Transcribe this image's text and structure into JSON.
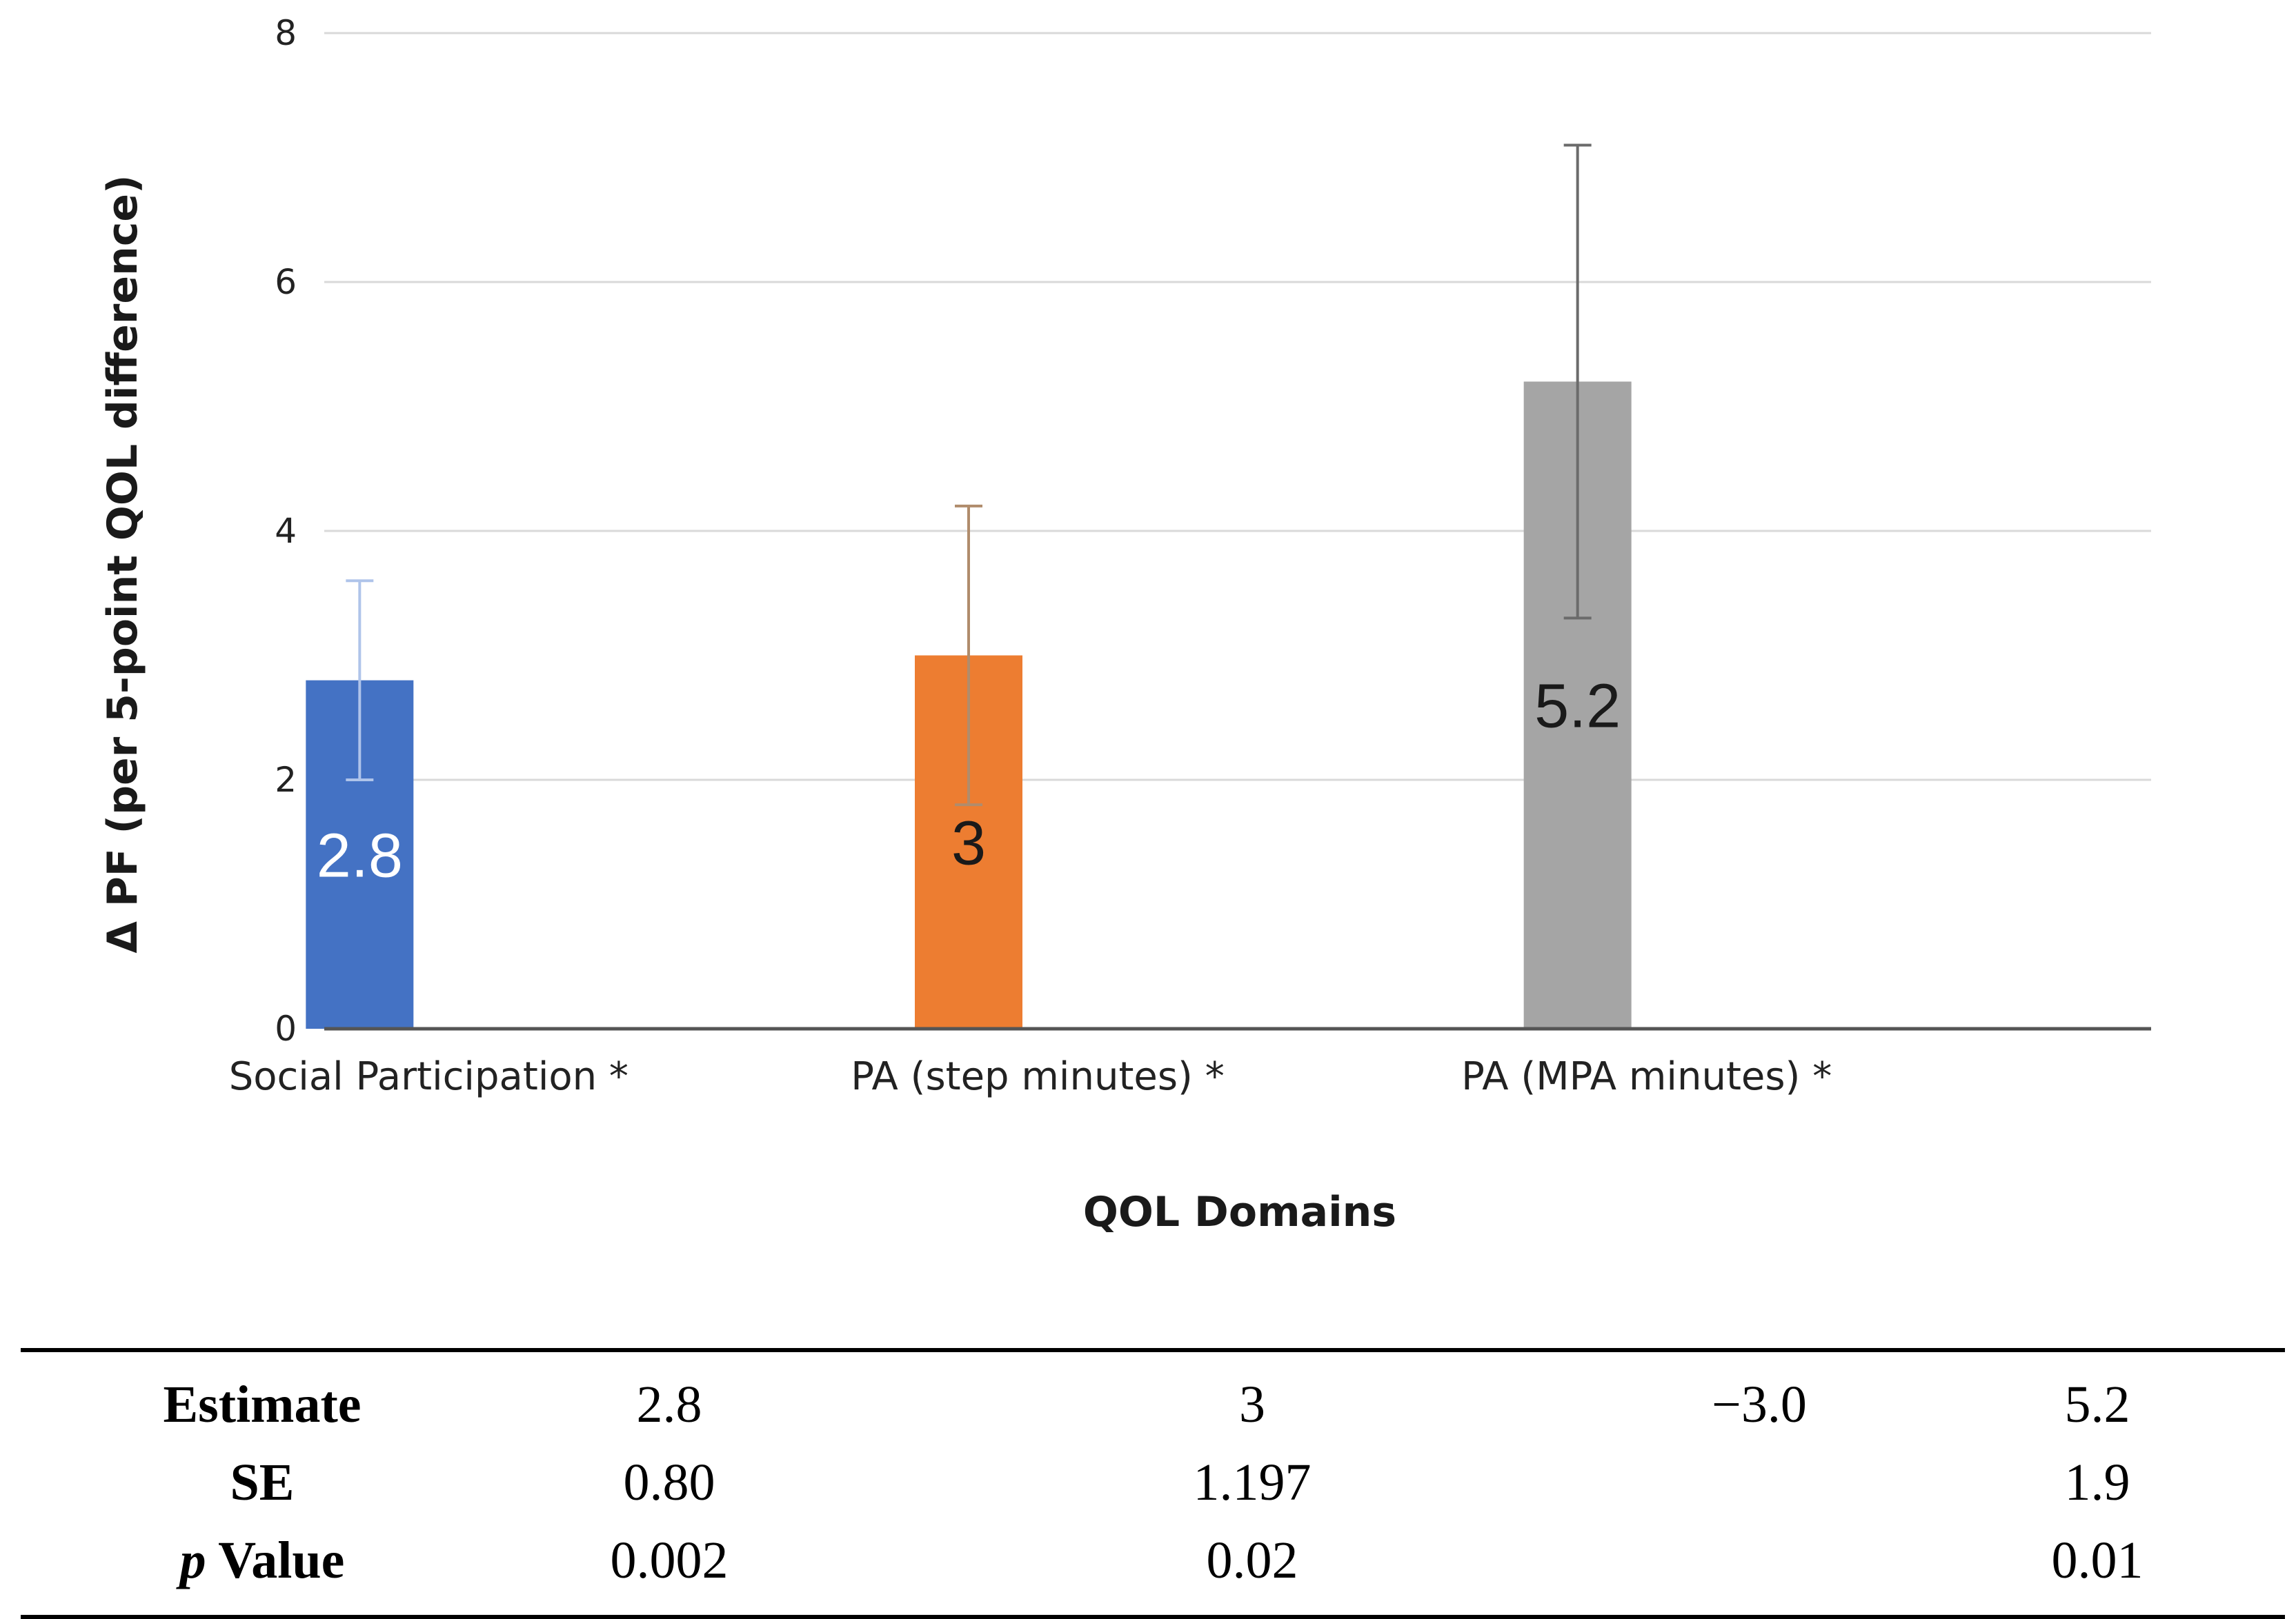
{
  "chart_data": {
    "type": "bar",
    "title": "",
    "xlabel": "QOL Domains",
    "ylabel": "Δ PF (per 5-point QOL difference)",
    "ylim": [
      0,
      8
    ],
    "yticks": [
      0,
      2,
      4,
      6,
      8
    ],
    "grid": true,
    "categories": [
      "Social Participation *",
      "PA (step minutes) *",
      "PA (MPA minutes) *"
    ],
    "values": [
      2.8,
      3,
      5.2
    ],
    "error_bars": [
      {
        "low": 2.0,
        "high": 3.6
      },
      {
        "low": 1.8,
        "high": 4.2
      },
      {
        "low": 3.3,
        "high": 7.1
      }
    ],
    "data_labels": [
      "2.8",
      "3",
      "5.2"
    ],
    "colors": [
      "#4472C4",
      "#ED7D31",
      "#A5A5A5"
    ],
    "error_colors": [
      "#AFC4EA",
      "#B08C6C",
      "#6B6B6B"
    ],
    "label_colors": [
      "#FFFFFF",
      "#1A1A1A",
      "#1A1A1A"
    ]
  },
  "table": {
    "rows": [
      {
        "label": "Estimate",
        "cells": [
          "2.8",
          "3",
          "−3.0",
          "5.2"
        ]
      },
      {
        "label": "SE",
        "cells": [
          "0.80",
          "1.197",
          "",
          "1.9"
        ]
      },
      {
        "label_italic": "p",
        "label": "Value",
        "cells": [
          "0.002",
          "0.02",
          "",
          "0.01"
        ]
      }
    ]
  }
}
